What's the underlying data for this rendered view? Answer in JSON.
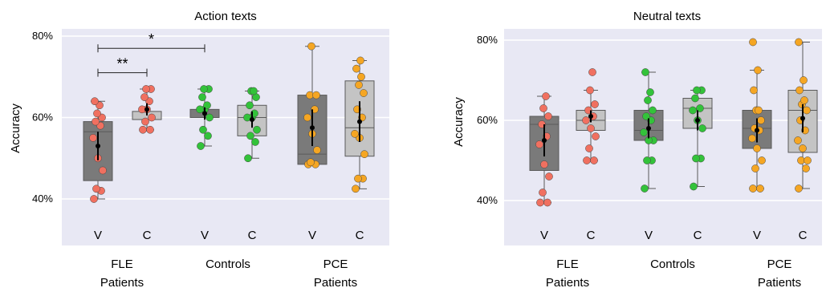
{
  "colors": {
    "panel_bg": "#e8e8f4",
    "grid": "#ffffff",
    "box_dark": "#7a7a7a",
    "box_light": "#c4c4c4",
    "box_edge": "#5a5a5a",
    "fle_points": "#f07060",
    "control_points": "#33c23a",
    "pce_points": "#f5a623",
    "mean_marker": "#000000"
  },
  "chart_data": [
    {
      "type": "box",
      "title": "Action texts",
      "ylabel": "Accuracy",
      "ylim": [
        36,
        81
      ],
      "yticks": [
        40,
        60,
        80
      ],
      "ytick_labels": [
        "40%",
        "60%",
        "80%"
      ],
      "grid": true,
      "groups": [
        {
          "label_line1": "FLE",
          "label_line2": "Patients"
        },
        {
          "label_line1": "Controls",
          "label_line2": ""
        },
        {
          "label_line1": "PCE",
          "label_line2": "Patients"
        }
      ],
      "boxes": [
        {
          "group": 0,
          "condition": "V",
          "style": "dark",
          "point_color": "fle",
          "min": 40,
          "q1": 44.5,
          "median": 56.5,
          "q3": 59,
          "max": 64,
          "mean": 53,
          "ci": [
            49.5,
            56.5
          ],
          "points": [
            40,
            42,
            42.5,
            47,
            50,
            55,
            58,
            59,
            60,
            61,
            63,
            64
          ]
        },
        {
          "group": 0,
          "condition": "C",
          "style": "light",
          "point_color": "fle",
          "min": 57,
          "q1": 59.5,
          "median": 59.5,
          "q3": 61.5,
          "max": 67,
          "mean": 62,
          "ci": [
            60.5,
            63.5
          ],
          "points": [
            57,
            57,
            59,
            60,
            62,
            62,
            64,
            65,
            67,
            67
          ]
        },
        {
          "group": 1,
          "condition": "V",
          "style": "dark",
          "point_color": "control",
          "min": 53,
          "q1": 60,
          "median": 60,
          "q3": 62,
          "max": 67,
          "mean": 61,
          "ci": [
            59.5,
            62.5
          ],
          "points": [
            53,
            55.5,
            57,
            60,
            62,
            62,
            63,
            65,
            67,
            67
          ]
        },
        {
          "group": 1,
          "condition": "C",
          "style": "light",
          "point_color": "control",
          "min": 50,
          "q1": 55.5,
          "median": 60,
          "q3": 63,
          "max": 66.5,
          "mean": 59.5,
          "ci": [
            57.5,
            61.5
          ],
          "points": [
            50,
            54,
            55.5,
            57,
            60,
            60,
            61,
            63,
            65,
            66.5,
            66.5
          ]
        },
        {
          "group": 2,
          "condition": "V",
          "style": "dark",
          "point_color": "pce",
          "min": 48.5,
          "q1": 48.5,
          "median": 51,
          "q3": 65.5,
          "max": 77.5,
          "mean": 57.5,
          "ci": [
            53,
            62
          ],
          "points": [
            48.5,
            48.5,
            49,
            52,
            56,
            60,
            62,
            65.5,
            65.5,
            77.5
          ]
        },
        {
          "group": 2,
          "condition": "C",
          "style": "light",
          "point_color": "pce",
          "min": 42.5,
          "q1": 50.5,
          "median": 57.5,
          "q3": 69,
          "max": 74,
          "mean": 59,
          "ci": [
            54,
            64
          ],
          "points": [
            42.5,
            45,
            45,
            51,
            55,
            56,
            60,
            62,
            66,
            68,
            70,
            72,
            74
          ]
        }
      ],
      "annotations": [
        {
          "from": 0,
          "to": 2,
          "level": 77,
          "label": "*"
        },
        {
          "from": 0,
          "to": 1,
          "level": 71,
          "label": "**"
        }
      ]
    },
    {
      "type": "box",
      "title": "Neutral texts",
      "ylabel": "Accuracy",
      "ylim": [
        36,
        81
      ],
      "yticks": [
        40,
        60,
        80
      ],
      "ytick_labels": [
        "40%",
        "60%",
        "80%"
      ],
      "grid": true,
      "groups": [
        {
          "label_line1": "FLE",
          "label_line2": "Patients"
        },
        {
          "label_line1": "Controls",
          "label_line2": ""
        },
        {
          "label_line1": "PCE",
          "label_line2": "Patients"
        }
      ],
      "boxes": [
        {
          "group": 0,
          "condition": "V",
          "style": "dark",
          "point_color": "fle",
          "min": 39.5,
          "q1": 47.5,
          "median": 59,
          "q3": 61,
          "max": 66,
          "mean": 55,
          "ci": [
            51,
            59
          ],
          "points": [
            39.5,
            39.5,
            42,
            46,
            49,
            54,
            56,
            59,
            61,
            63,
            66
          ]
        },
        {
          "group": 0,
          "condition": "C",
          "style": "light",
          "point_color": "fle",
          "min": 50,
          "q1": 57.5,
          "median": 60,
          "q3": 62.5,
          "max": 67.5,
          "mean": 61,
          "ci": [
            59.5,
            62.5
          ],
          "points": [
            50,
            50,
            53,
            56,
            58,
            60,
            61,
            62.5,
            64,
            67.5,
            72
          ]
        },
        {
          "group": 1,
          "condition": "V",
          "style": "dark",
          "point_color": "control",
          "min": 43,
          "q1": 55,
          "median": 57.5,
          "q3": 62.5,
          "max": 72,
          "mean": 58,
          "ci": [
            55.5,
            60.5
          ],
          "points": [
            43,
            50,
            50,
            55,
            55,
            57,
            60,
            61,
            62.5,
            65,
            67,
            72
          ]
        },
        {
          "group": 1,
          "condition": "C",
          "style": "light",
          "point_color": "control",
          "min": 43.5,
          "q1": 58,
          "median": 63,
          "q3": 65.5,
          "max": 67.5,
          "mean": 60,
          "ci": [
            57.5,
            62.5
          ],
          "points": [
            43.5,
            50.5,
            50.5,
            58,
            60,
            62.5,
            63,
            65.5,
            67.5,
            67.5
          ]
        },
        {
          "group": 2,
          "condition": "V",
          "style": "dark",
          "point_color": "pce",
          "min": 43,
          "q1": 53,
          "median": 58,
          "q3": 62.5,
          "max": 72.5,
          "mean": 57.5,
          "ci": [
            54.5,
            60.5
          ],
          "points": [
            43,
            43,
            48,
            50,
            53,
            55.5,
            57.5,
            58,
            60,
            62.5,
            62.5,
            67.5,
            72.5,
            79.5
          ]
        },
        {
          "group": 2,
          "condition": "C",
          "style": "light",
          "point_color": "pce",
          "min": 43,
          "q1": 52,
          "median": 62.5,
          "q3": 67.5,
          "max": 79.5,
          "mean": 60.5,
          "ci": [
            57,
            64
          ],
          "points": [
            43,
            48,
            50,
            50,
            53,
            55,
            57.5,
            60,
            62.5,
            64,
            65,
            67.5,
            70,
            79.5
          ]
        }
      ],
      "annotations": []
    }
  ]
}
